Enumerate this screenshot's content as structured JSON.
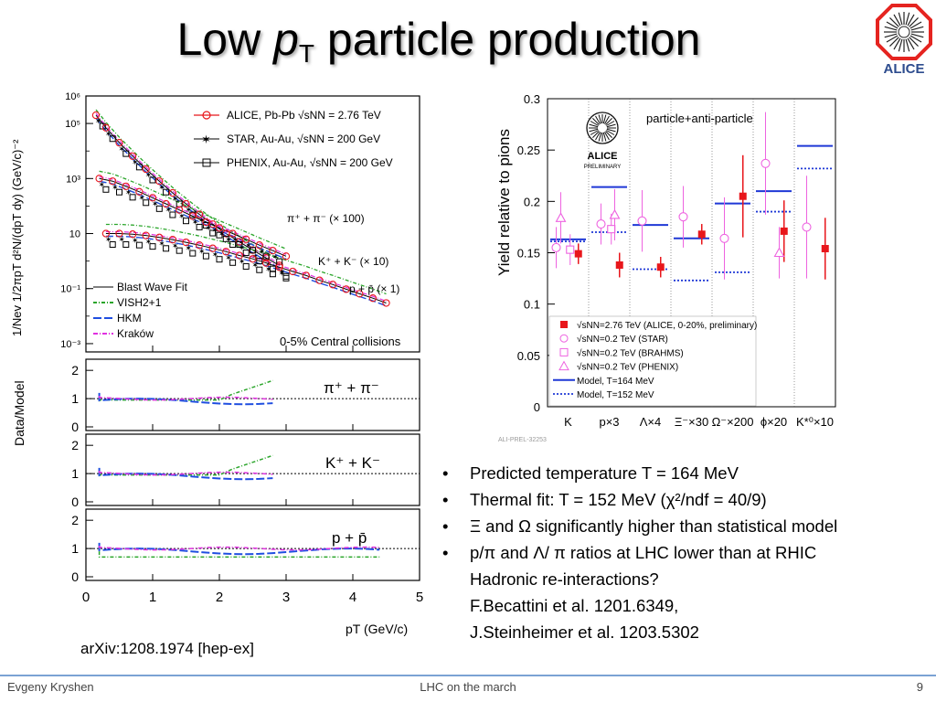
{
  "slide": {
    "title_main": "Low ",
    "title_p": "p",
    "title_sub": "T",
    "title_rest": " particle production",
    "logo_text": "ALICE",
    "bullets": [
      {
        "text": "Predicted temperature T = 164 MeV",
        "lines": []
      },
      {
        "text": "Thermal fit: T = 152 MeV (χ²/ndf = 40/9)",
        "lines": []
      },
      {
        "text": "Ξ and Ω significantly higher than statistical model",
        "lines": []
      },
      {
        "text": "p/π and Λ/ π ratios at LHC lower than at RHIC",
        "lines": [
          "Hadronic re-interactions?",
          "F.Becattini et al. 1201.6349,",
          "J.Steinheimer et al. 1203.5302"
        ]
      }
    ],
    "reference": "arXiv:1208.1974 [hep-ex]",
    "footer_left": "Evgeny Kryshen",
    "footer_center": "LHC on the march",
    "footer_right": "9"
  },
  "chart_data": [
    {
      "type": "scatter",
      "ylabel": "1/Nev 1/2πpT d²N/(dpT dy) (GeV/c)⁻²",
      "xlabel": "pT (GeV/c)",
      "xlim": [
        0,
        5
      ],
      "ylog": true,
      "ylim": [
        0.0005,
        1000000
      ],
      "ytick_labels": [
        "10⁶",
        "10⁵",
        "10³",
        "10",
        "10⁻¹",
        "10⁻³"
      ],
      "xtick_labels": [
        "0",
        "1",
        "2",
        "3",
        "4",
        "5"
      ],
      "legend_top": [
        "ALICE, Pb-Pb √sNN = 2.76 TeV",
        "STAR, Au-Au, √sNN = 200 GeV",
        "PHENIX, Au-Au, √sNN = 200 GeV"
      ],
      "legend_models": [
        "Blast Wave Fit",
        "VISH2+1",
        "HKM",
        "Kraków"
      ],
      "annotation": "0-5% Central collisions",
      "species_labels": [
        "π⁺ + π⁻ (× 100)",
        "K⁺ + K⁻ (× 10)",
        "p + p̄ (× 1)"
      ],
      "series": [
        {
          "name": "π⁺ + π⁻ (× 100)",
          "x": [
            0.15,
            0.3,
            0.5,
            0.7,
            0.9,
            1.1,
            1.3,
            1.5,
            1.7,
            1.9,
            2.1,
            2.3,
            2.5,
            2.7,
            2.9
          ],
          "y": [
            200000,
            70000,
            20000,
            6500,
            2200,
            800,
            300,
            120,
            50,
            22,
            10,
            5,
            2.5,
            1.3,
            0.7
          ]
        },
        {
          "name": "K⁺ + K⁻ (× 10)",
          "x": [
            0.2,
            0.4,
            0.6,
            0.8,
            1.0,
            1.2,
            1.4,
            1.6,
            1.8,
            2.0,
            2.2,
            2.4,
            2.6,
            2.8,
            3.0
          ],
          "y": [
            1000,
            800,
            520,
            330,
            200,
            120,
            72,
            43,
            26,
            16,
            10,
            6.2,
            3.8,
            2.4,
            1.5
          ]
        },
        {
          "name": "p + p̄ (× 1)",
          "x": [
            0.3,
            0.5,
            0.7,
            0.9,
            1.1,
            1.3,
            1.5,
            1.7,
            1.9,
            2.1,
            2.3,
            2.5,
            2.7,
            2.9,
            3.1,
            3.3,
            3.5,
            3.7,
            3.9,
            4.1,
            4.3,
            4.5
          ],
          "y": [
            10,
            10,
            9.5,
            8.5,
            7.2,
            6,
            4.8,
            3.8,
            2.9,
            2.2,
            1.6,
            1.2,
            0.85,
            0.6,
            0.42,
            0.3,
            0.2,
            0.14,
            0.095,
            0.065,
            0.045,
            0.03
          ]
        }
      ],
      "ratio_panels": [
        {
          "label": "π⁺ + π⁻",
          "ylabel": "Data/Model",
          "ytick_labels": [
            "2",
            "1",
            "0"
          ]
        },
        {
          "label": "K⁺ + K⁻",
          "ytick_labels": [
            "2",
            "1",
            "0"
          ]
        },
        {
          "label": "p + p̄",
          "ytick_labels": [
            "2",
            "1",
            "0"
          ]
        }
      ]
    },
    {
      "type": "scatter",
      "ylabel": "Yield relative to pions",
      "ylim": [
        0,
        0.3
      ],
      "ytick_labels": [
        "0",
        "0.05",
        "0.1",
        "0.15",
        "0.2",
        "0.25",
        "0.3"
      ],
      "categories": [
        "K",
        "p×3",
        "Λ×4",
        "Ξ⁻×30",
        "Ω⁻×200",
        "ϕ×20",
        "K*⁰×10"
      ],
      "annotation": "particle+anti-particle",
      "logo_text": "ALICE",
      "logo_subtext": "PRELIMINARY",
      "figure_id": "ALI-PREL-32253",
      "legend": [
        "√sNN=2.76 TeV (ALICE, 0-20%, preliminary)",
        "√sNN=0.2 TeV (STAR)",
        "√sNN=0.2 TeV (BRAHMS)",
        "√sNN=0.2 TeV (PHENIX)",
        "Model, T=164 MeV",
        "Model, T=152 MeV"
      ],
      "series": [
        {
          "name": "√sNN=2.76 TeV (ALICE, 0-20%, preliminary)",
          "values": [
            0.149,
            0.138,
            0.136,
            0.168,
            0.205,
            0.171,
            0.154
          ]
        },
        {
          "name": "√sNN=0.2 TeV (STAR)",
          "values": [
            0.155,
            0.178,
            0.181,
            0.185,
            0.164,
            0.237,
            0.175
          ]
        },
        {
          "name": "√sNN=0.2 TeV (BRAHMS)",
          "values": [
            0.153,
            0.173,
            null,
            null,
            null,
            null,
            null
          ]
        },
        {
          "name": "√sNN=0.2 TeV (PHENIX)",
          "values": [
            0.184,
            0.187,
            null,
            null,
            null,
            0.15,
            null
          ]
        },
        {
          "name": "Model, T=164 MeV",
          "values": [
            0.163,
            0.214,
            0.177,
            0.164,
            0.198,
            0.21,
            0.254
          ]
        },
        {
          "name": "Model, T=152 MeV",
          "values": [
            0.161,
            0.17,
            0.134,
            0.123,
            0.131,
            0.19,
            0.232
          ]
        }
      ],
      "colors": {
        "alice": "#e8161b",
        "rhic": "#ee63e0",
        "model": "#1f38d6"
      }
    }
  ]
}
